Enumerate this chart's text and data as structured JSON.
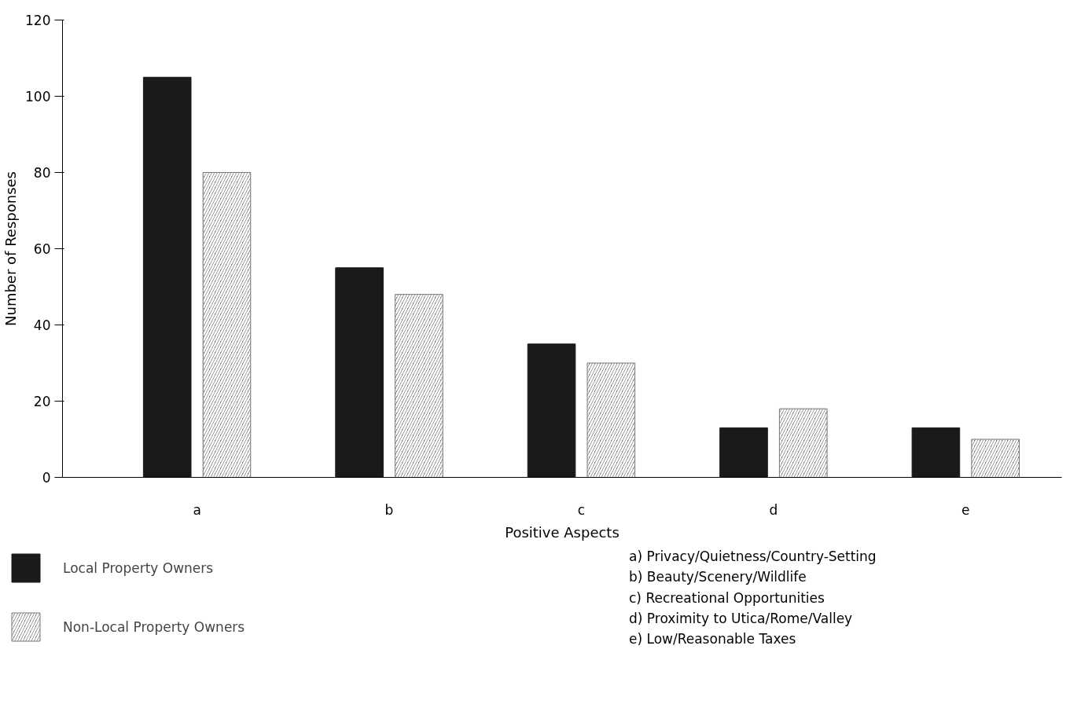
{
  "chart_data": {
    "type": "bar",
    "xlabel": "Positive Aspects",
    "ylabel": "Number of Responses",
    "categories": [
      "a",
      "b",
      "c",
      "d",
      "e"
    ],
    "series": [
      {
        "name": "Local Property Owners",
        "color": "#1a1a1a",
        "values": [
          105,
          55,
          35,
          13,
          13
        ]
      },
      {
        "name": "Non-Local Property Owners",
        "color": "#777777",
        "values": [
          80,
          48,
          30,
          18,
          10
        ]
      }
    ],
    "ylim": [
      0,
      120
    ],
    "yticks": [
      0,
      20,
      40,
      60,
      80,
      100,
      120
    ],
    "grid": false,
    "legend": "bottom",
    "annotations": [
      "a) Privacy/Quietness/Country-Setting",
      "b) Beauty/Scenery/Wildlife",
      "c) Recreational Opportunities",
      "d) Proximity to Utica/Rome/Valley",
      "e) Low/Reasonable Taxes"
    ]
  }
}
